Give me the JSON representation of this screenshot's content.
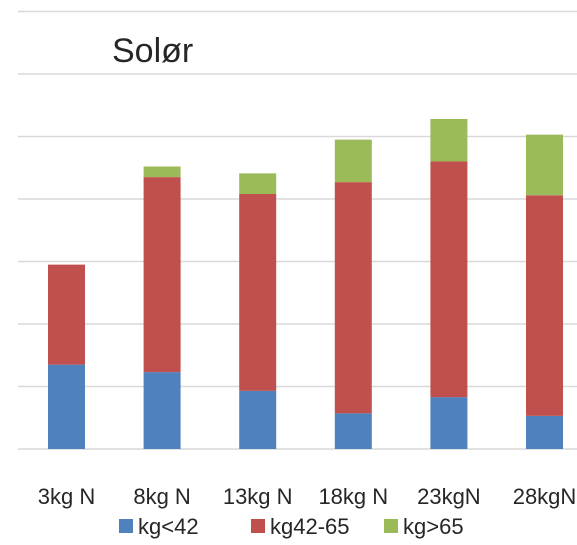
{
  "chart_data": {
    "type": "bar",
    "stacked": true,
    "title": "Solør",
    "xlabel": "",
    "ylabel": "",
    "categories": [
      "3kg N",
      "8kg N",
      "13kg N",
      "18kg N",
      "23kgN",
      "28kgN"
    ],
    "series": [
      {
        "name": "kg<42",
        "color": "#4f81bd",
        "values": [
          1.35,
          1.23,
          0.93,
          0.57,
          0.83,
          0.53
        ]
      },
      {
        "name": "kg42-65",
        "color": "#c0504d",
        "values": [
          1.6,
          3.12,
          3.15,
          3.7,
          3.77,
          3.53
        ]
      },
      {
        "name": "kg>65",
        "color": "#9bbb59",
        "values": [
          0.0,
          0.17,
          0.33,
          0.68,
          0.68,
          0.97
        ]
      }
    ],
    "ylim": [
      0,
      7.2
    ],
    "gridlines": [
      1,
      2,
      3,
      4,
      5,
      6,
      7
    ],
    "grid": true,
    "legend_position": "bottom"
  }
}
